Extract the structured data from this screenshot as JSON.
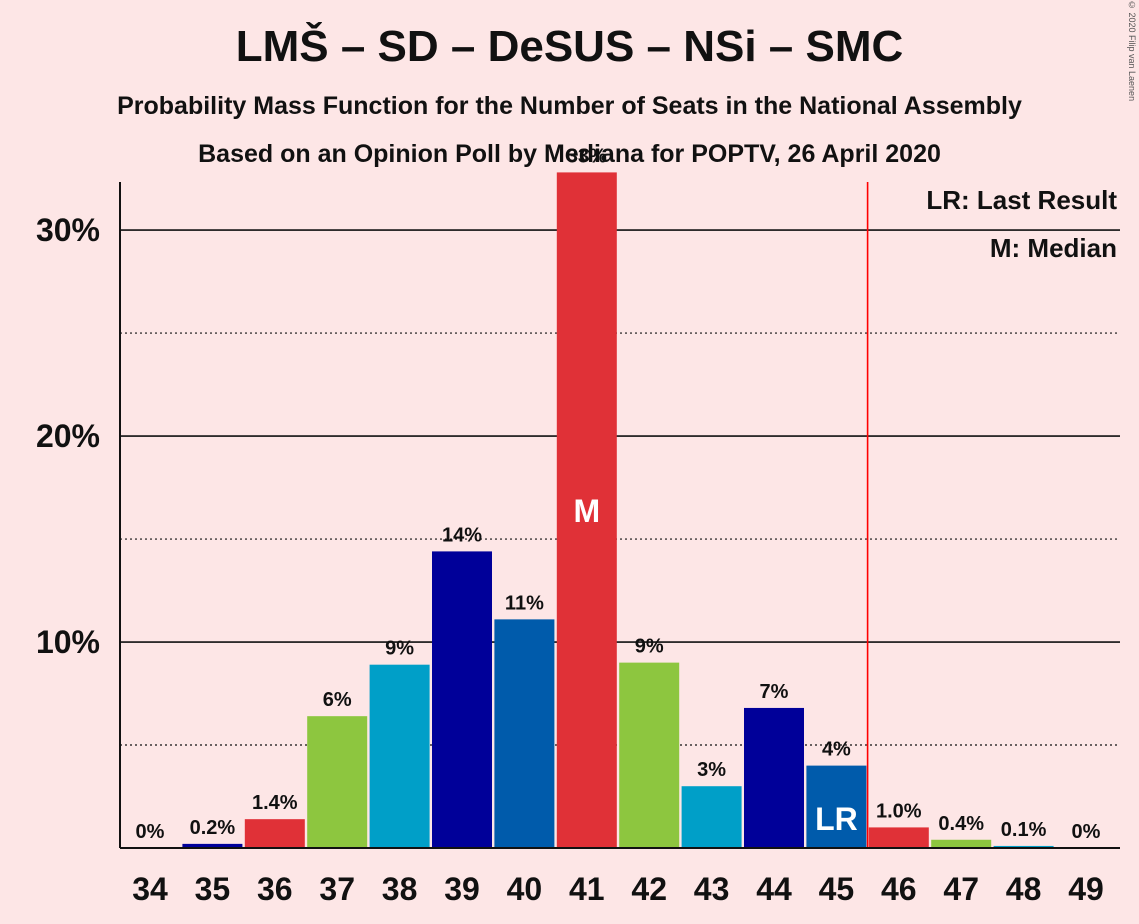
{
  "title": "LMŠ – SD – DeSUS – NSi – SMC",
  "subtitle_1": "Probability Mass Function for the Number of Seats in the National Assembly",
  "subtitle_2": "Based on an Opinion Poll by Mediana for POPTV, 26 April 2020",
  "copyright": "© 2020 Filip van Laenen",
  "legend": {
    "last_result": "LR: Last Result",
    "median": "M: Median"
  },
  "colors": {
    "background": "#fde6e6",
    "red": "#e03137",
    "green": "#8dc63f",
    "cyan": "#009fc8",
    "navy": "#000099",
    "blue": "#005bab",
    "threshold_line": "#ff0000"
  },
  "chart_data": {
    "type": "bar",
    "categories": [
      "34",
      "35",
      "36",
      "37",
      "38",
      "39",
      "40",
      "41",
      "42",
      "43",
      "44",
      "45",
      "46",
      "47",
      "48",
      "49"
    ],
    "values": [
      0,
      0.2,
      1.4,
      6.4,
      8.9,
      14.4,
      11.1,
      32.8,
      9.0,
      3.0,
      6.8,
      4.0,
      1.0,
      0.4,
      0.1,
      0
    ],
    "labels": [
      "0%",
      "0.2%",
      "1.4%",
      "6%",
      "9%",
      "14%",
      "11%",
      "33%",
      "9%",
      "3%",
      "7%",
      "4%",
      "1.0%",
      "0.4%",
      "0.1%",
      "0%"
    ],
    "bar_colors": [
      "red",
      "navy",
      "red",
      "green",
      "cyan",
      "navy",
      "blue",
      "red",
      "green",
      "cyan",
      "navy",
      "blue",
      "red",
      "green",
      "cyan",
      "navy"
    ],
    "ylim": [
      0,
      36
    ],
    "yticks": [
      10,
      20,
      30
    ],
    "ytick_labels": [
      "10%",
      "20%",
      "30%"
    ],
    "minor_gridlines": [
      5,
      15,
      25
    ],
    "median_seat": "41",
    "median_marker": "M",
    "last_result_seat": "45",
    "last_result_marker": "LR",
    "majority_line_between": [
      "45",
      "46"
    ]
  }
}
